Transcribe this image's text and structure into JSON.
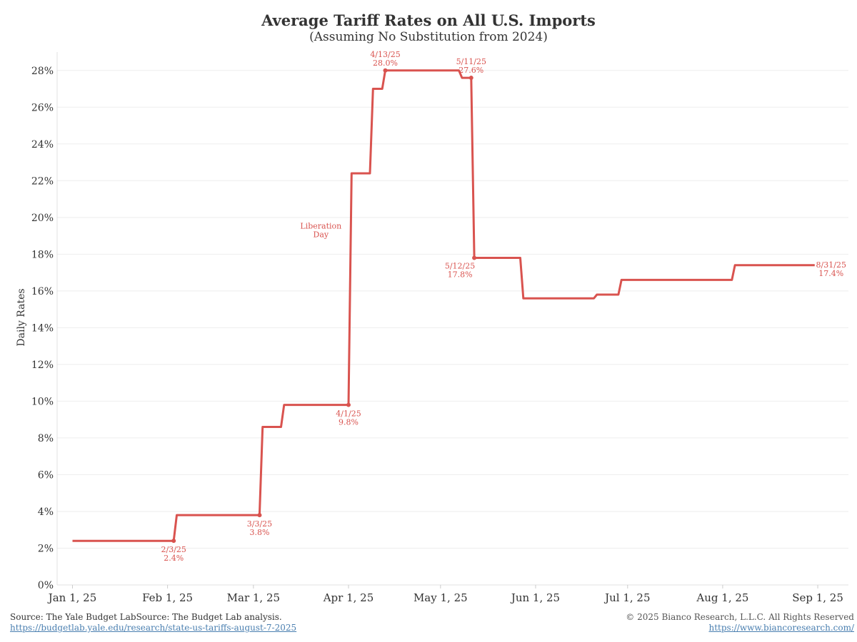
{
  "chart_data": {
    "type": "line",
    "title": "Average Tariff Rates on All U.S. Imports",
    "subtitle": "(Assuming No Substitution from 2024)",
    "ylabel": "Daily Rates",
    "xlabel": "",
    "ylim": [
      0,
      29
    ],
    "xlim": [
      "2024-12-27",
      "2025-09-11"
    ],
    "grid": true,
    "step": true,
    "y_ticks": [
      0,
      2,
      4,
      6,
      8,
      10,
      12,
      14,
      16,
      18,
      20,
      22,
      24,
      26,
      28
    ],
    "y_tick_labels": [
      "0%",
      "2%",
      "4%",
      "6%",
      "8%",
      "10%",
      "12%",
      "14%",
      "16%",
      "18%",
      "20%",
      "22%",
      "24%",
      "26%",
      "28%"
    ],
    "x_ticks": [
      "2025-01-01",
      "2025-02-01",
      "2025-03-01",
      "2025-04-01",
      "2025-05-01",
      "2025-06-01",
      "2025-07-01",
      "2025-08-01",
      "2025-09-01"
    ],
    "x_tick_labels": [
      "Jan 1, 25",
      "Feb 1, 25",
      "Mar 1, 25",
      "Apr 1, 25",
      "May 1, 25",
      "Jun 1, 25",
      "Jul 1, 25",
      "Aug 1, 25",
      "Sep 1, 25"
    ],
    "series": [
      {
        "color": "#d9534f",
        "points": [
          [
            "2025-01-01",
            2.4
          ],
          [
            "2025-02-03",
            2.4
          ],
          [
            "2025-02-04",
            3.8
          ],
          [
            "2025-03-03",
            3.8
          ],
          [
            "2025-03-04",
            8.6
          ],
          [
            "2025-03-10",
            8.6
          ],
          [
            "2025-03-11",
            9.8
          ],
          [
            "2025-04-01",
            9.8
          ],
          [
            "2025-04-02",
            22.4
          ],
          [
            "2025-04-08",
            22.4
          ],
          [
            "2025-04-09",
            27.0
          ],
          [
            "2025-04-12",
            27.0
          ],
          [
            "2025-04-13",
            28.0
          ],
          [
            "2025-05-07",
            28.0
          ],
          [
            "2025-05-08",
            27.6
          ],
          [
            "2025-05-11",
            27.6
          ],
          [
            "2025-05-12",
            17.8
          ],
          [
            "2025-05-27",
            17.8
          ],
          [
            "2025-05-28",
            15.6
          ],
          [
            "2025-06-20",
            15.6
          ],
          [
            "2025-06-21",
            15.8
          ],
          [
            "2025-06-28",
            15.8
          ],
          [
            "2025-06-29",
            16.6
          ],
          [
            "2025-08-04",
            16.6
          ],
          [
            "2025-08-05",
            17.4
          ],
          [
            "2025-08-31",
            17.4
          ]
        ]
      }
    ],
    "markers": [
      {
        "date": "2025-02-03",
        "value": 2.4,
        "label_date": "2/3/25",
        "label_value": "2.4%",
        "position": "below"
      },
      {
        "date": "2025-03-03",
        "value": 3.8,
        "label_date": "3/3/25",
        "label_value": "3.8%",
        "position": "below"
      },
      {
        "date": "2025-04-01",
        "value": 9.8,
        "label_date": "4/1/25",
        "label_value": "9.8%",
        "position": "below"
      },
      {
        "date": "2025-04-13",
        "value": 28.0,
        "label_date": "4/13/25",
        "label_value": "28.0%",
        "position": "above"
      },
      {
        "date": "2025-05-11",
        "value": 27.6,
        "label_date": "5/11/25",
        "label_value": "27.6%",
        "position": "above"
      },
      {
        "date": "2025-05-12",
        "value": 17.8,
        "label_date": "5/12/25",
        "label_value": "17.8%",
        "position": "below-left"
      },
      {
        "date": "2025-08-31",
        "value": 17.4,
        "label_date": "8/31/25",
        "label_value": "17.4%",
        "position": "right"
      }
    ],
    "annotations": [
      {
        "text_line1": "Liberation",
        "text_line2": "Day",
        "date": "2025-03-23",
        "value": 19.4
      }
    ]
  },
  "footer": {
    "source": "Source: The Yale Budget LabSource: The Budget Lab analysis.",
    "source_url": "https://budgetlab.yale.edu/research/state-us-tariffs-august-7-2025",
    "copyright": "© 2025 Bianco Research, L.L.C. All Rights Reserved",
    "site_url": "https://www.biancoresearch.com/"
  }
}
